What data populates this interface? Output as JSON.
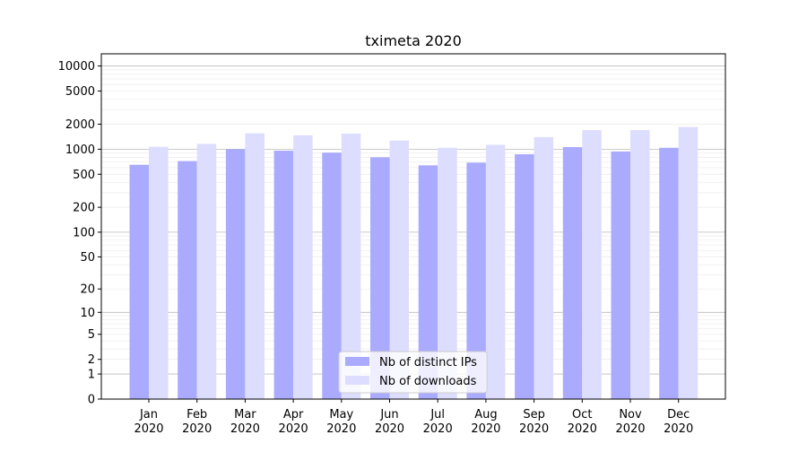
{
  "chart_data": {
    "type": "bar",
    "title": "tximeta 2020",
    "xlabel": "",
    "ylabel": "",
    "yscale": "symlog",
    "grid": true,
    "legend_position": "lower center",
    "categories": [
      [
        "Jan",
        "2020"
      ],
      [
        "Feb",
        "2020"
      ],
      [
        "Mar",
        "2020"
      ],
      [
        "Apr",
        "2020"
      ],
      [
        "May",
        "2020"
      ],
      [
        "Jun",
        "2020"
      ],
      [
        "Jul",
        "2020"
      ],
      [
        "Aug",
        "2020"
      ],
      [
        "Sep",
        "2020"
      ],
      [
        "Oct",
        "2020"
      ],
      [
        "Nov",
        "2020"
      ],
      [
        "Dec",
        "2020"
      ]
    ],
    "yticks": [
      0,
      1,
      2,
      5,
      10,
      20,
      50,
      100,
      200,
      500,
      1000,
      2000,
      5000,
      10000
    ],
    "ytick_labels": [
      "0",
      "1",
      "2",
      "5",
      "10",
      "20",
      "50",
      "100",
      "200",
      "500",
      "1000",
      "2000",
      "5000",
      "10000"
    ],
    "ylim": [
      0,
      14000
    ],
    "series": [
      {
        "name": "Nb of distinct IPs",
        "color": "#aaaaff",
        "values": [
          650,
          720,
          1000,
          960,
          910,
          800,
          640,
          690,
          870,
          1060,
          940,
          1040
        ]
      },
      {
        "name": "Nb of downloads",
        "color": "#ddddff",
        "values": [
          1070,
          1160,
          1550,
          1470,
          1540,
          1270,
          1040,
          1130,
          1400,
          1700,
          1700,
          1850
        ]
      }
    ]
  }
}
